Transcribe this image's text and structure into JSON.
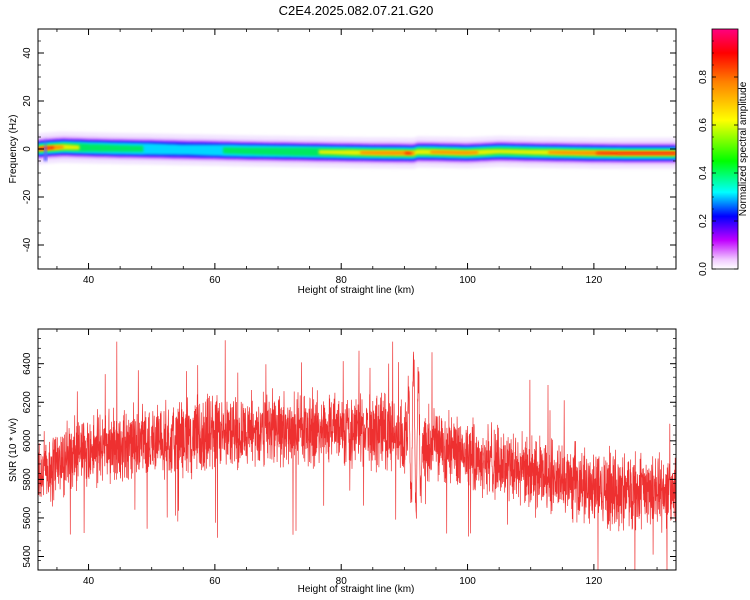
{
  "title": "C2E4.2025.082.07.21.G20",
  "chart_data": [
    {
      "type": "heatmap",
      "name": "spectrogram",
      "xlabel": "Height of straight line (km)",
      "ylabel": "Frequency (Hz)",
      "xlim": [
        32,
        133
      ],
      "ylim": [
        -50,
        50
      ],
      "xticks": [
        40,
        60,
        80,
        100,
        120
      ],
      "yticks": [
        -40,
        -20,
        0,
        20,
        40
      ],
      "ridge": {
        "x": [
          32,
          34,
          36,
          40,
          45,
          50,
          55,
          60,
          65,
          70,
          75,
          80,
          85,
          90,
          91.5,
          92,
          95,
          100,
          105,
          110,
          115,
          120,
          125,
          130,
          133
        ],
        "freq": [
          0,
          0.5,
          0.8,
          0.5,
          0.2,
          0,
          -0.3,
          -0.5,
          -0.8,
          -1,
          -1.2,
          -1.4,
          -1.6,
          -1.7,
          -1.8,
          -1.2,
          -1.3,
          -1.6,
          -1,
          -1.3,
          -1.5,
          -1.7,
          -1.8,
          -1.8,
          -1.8
        ],
        "amplitude": [
          0.9,
          0.95,
          0.8,
          0.55,
          0.5,
          0.45,
          0.4,
          0.45,
          0.5,
          0.55,
          0.6,
          0.7,
          0.85,
          0.9,
          0.9,
          0.75,
          0.8,
          0.85,
          0.65,
          0.7,
          0.85,
          0.9,
          0.95,
          0.95,
          0.95
        ]
      },
      "colorbar": {
        "label": "Normalized spectral amplitude",
        "range": [
          0,
          1
        ],
        "ticks": [
          "0.0",
          "0.2",
          "0.4",
          "0.6",
          "0.8"
        ],
        "tick_values": [
          0,
          0.2,
          0.4,
          0.6,
          0.8
        ]
      }
    },
    {
      "type": "line",
      "name": "snr",
      "xlabel": "Height of straight line (km)",
      "ylabel": "SNR (10 * v/v)",
      "xlim": [
        32,
        133
      ],
      "ylim": [
        5330,
        6580
      ],
      "xticks": [
        40,
        60,
        80,
        100,
        120
      ],
      "yticks": [
        5400,
        5600,
        5800,
        6000,
        6200,
        6400
      ],
      "line_color": "#ee3030",
      "trend": {
        "x": [
          32,
          40,
          50,
          60,
          70,
          80,
          88,
          91,
          95,
          100,
          110,
          120,
          133
        ],
        "y": [
          5840,
          5950,
          6000,
          6040,
          6060,
          6070,
          6050,
          6020,
          5980,
          5930,
          5830,
          5760,
          5730
        ]
      },
      "noise_amplitude": 230,
      "samples": 3200
    }
  ]
}
